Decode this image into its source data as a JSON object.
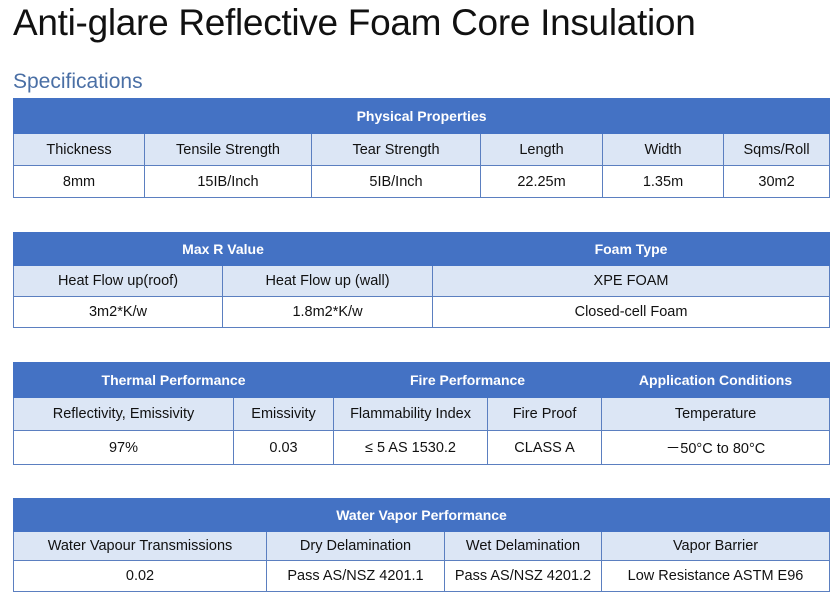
{
  "page": {
    "title": "Anti-glare Reflective Foam Core Insulation",
    "section": "Specifications"
  },
  "physical": {
    "header": "Physical Properties",
    "columns": [
      "Thickness",
      "Tensile Strength",
      "Tear Strength",
      "Length",
      "Width",
      "Sqms/Roll"
    ],
    "values": [
      "8mm",
      "15IB/Inch",
      "5IB/Inch",
      "22.25m",
      "1.35m",
      "30m2"
    ]
  },
  "rvalue": {
    "header_r": "Max R Value",
    "header_foam": "Foam Type",
    "columns": [
      "Heat Flow up(roof)",
      "Heat Flow up (wall)",
      "XPE FOAM"
    ],
    "values": [
      "3m2*K/w",
      "1.8m2*K/w",
      "Closed-cell Foam"
    ]
  },
  "performance": {
    "header_thermal": "Thermal Performance",
    "header_fire": "Fire Performance",
    "header_app": "Application Conditions",
    "columns": [
      "Reflectivity, Emissivity",
      "Emissivity",
      "Flammability Index",
      "Fire Proof",
      "Temperature"
    ],
    "values": [
      "97%",
      "0.03",
      "≤ 5 AS 1530.2",
      "CLASS A",
      "－50°C to 80°C"
    ]
  },
  "vapor": {
    "header": "Water Vapor Performance",
    "columns": [
      "Water Vapour Transmissions",
      "Dry Delamination",
      "Wet Delamination",
      "Vapor Barrier"
    ],
    "values": [
      "0.02",
      "Pass AS/NSZ 4201.1",
      "Pass AS/NSZ 4201.2",
      "Low Resistance ASTM E96"
    ]
  },
  "colors": {
    "header_bg": "#4472c4",
    "subheader_bg": "#dce6f5",
    "section_title": "#4a6fa5"
  }
}
